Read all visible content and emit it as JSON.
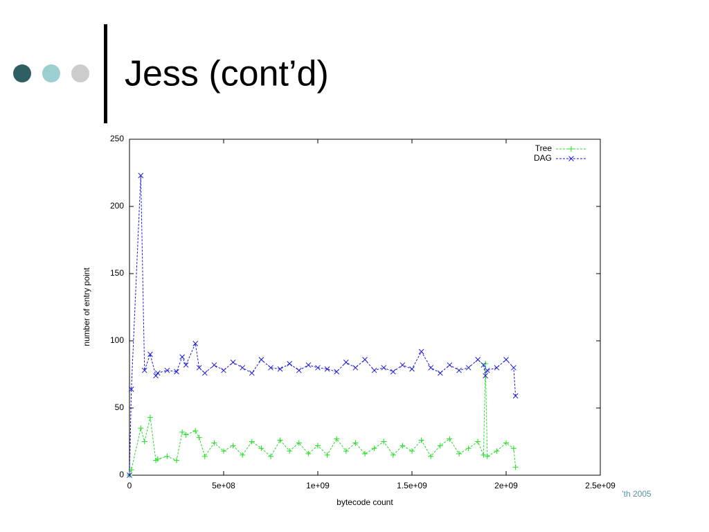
{
  "slide_title": "Jess (cont’d)",
  "footer": "’th 2005",
  "chart_data": {
    "type": "line",
    "xlabel": "bytecode count",
    "ylabel": "number of entry point",
    "x": [
      0,
      10000000,
      60000000,
      80000000,
      110000000,
      140000000,
      150000000,
      200000000,
      250000000,
      280000000,
      300000000,
      350000000,
      370000000,
      400000000,
      450000000,
      500000000,
      550000000,
      600000000,
      650000000,
      700000000,
      750000000,
      800000000,
      850000000,
      900000000,
      950000000,
      1000000000,
      1050000000,
      1100000000,
      1150000000,
      1200000000,
      1250000000,
      1300000000,
      1350000000,
      1400000000,
      1450000000,
      1500000000,
      1550000000,
      1600000000,
      1650000000,
      1700000000,
      1750000000,
      1800000000,
      1850000000,
      1880000000,
      1890000000,
      1900000000,
      1950000000,
      2000000000,
      2040000000,
      2050000000
    ],
    "series": [
      {
        "name": "Tree",
        "color": "#22dd22",
        "marker": "+",
        "values": [
          0,
          4,
          35,
          25,
          43,
          11,
          12,
          14,
          11,
          32,
          30,
          33,
          28,
          14,
          24,
          18,
          22,
          15,
          25,
          20,
          14,
          26,
          18,
          24,
          16,
          22,
          15,
          27,
          18,
          24,
          16,
          20,
          25,
          15,
          22,
          18,
          26,
          14,
          22,
          27,
          16,
          20,
          25,
          15,
          83,
          14,
          18,
          24,
          20,
          6
        ]
      },
      {
        "name": "DAG",
        "color": "#1a1ad8",
        "marker": "x",
        "values": [
          0,
          64,
          223,
          78,
          90,
          74,
          76,
          78,
          77,
          88,
          82,
          98,
          80,
          76,
          82,
          78,
          84,
          80,
          76,
          86,
          80,
          79,
          83,
          78,
          82,
          80,
          79,
          77,
          84,
          80,
          86,
          78,
          80,
          77,
          82,
          79,
          92,
          80,
          76,
          82,
          78,
          80,
          86,
          82,
          74,
          78,
          80,
          86,
          80,
          59
        ]
      }
    ],
    "xlim": [
      0,
      2500000000
    ],
    "xticks": [
      0,
      {
        "value": 500000000,
        "label": "5e+08"
      },
      {
        "value": 1000000000,
        "label": "1e+09"
      },
      {
        "value": 1500000000,
        "label": "1.5e+09"
      },
      {
        "value": 2000000000,
        "label": "2e+09"
      },
      {
        "value": 2500000000,
        "label": "2.5e+09"
      }
    ],
    "ylim": [
      0,
      250
    ],
    "yticks": [
      0,
      50,
      100,
      150,
      200,
      250
    ],
    "legend": "upper right",
    "grid": false
  }
}
